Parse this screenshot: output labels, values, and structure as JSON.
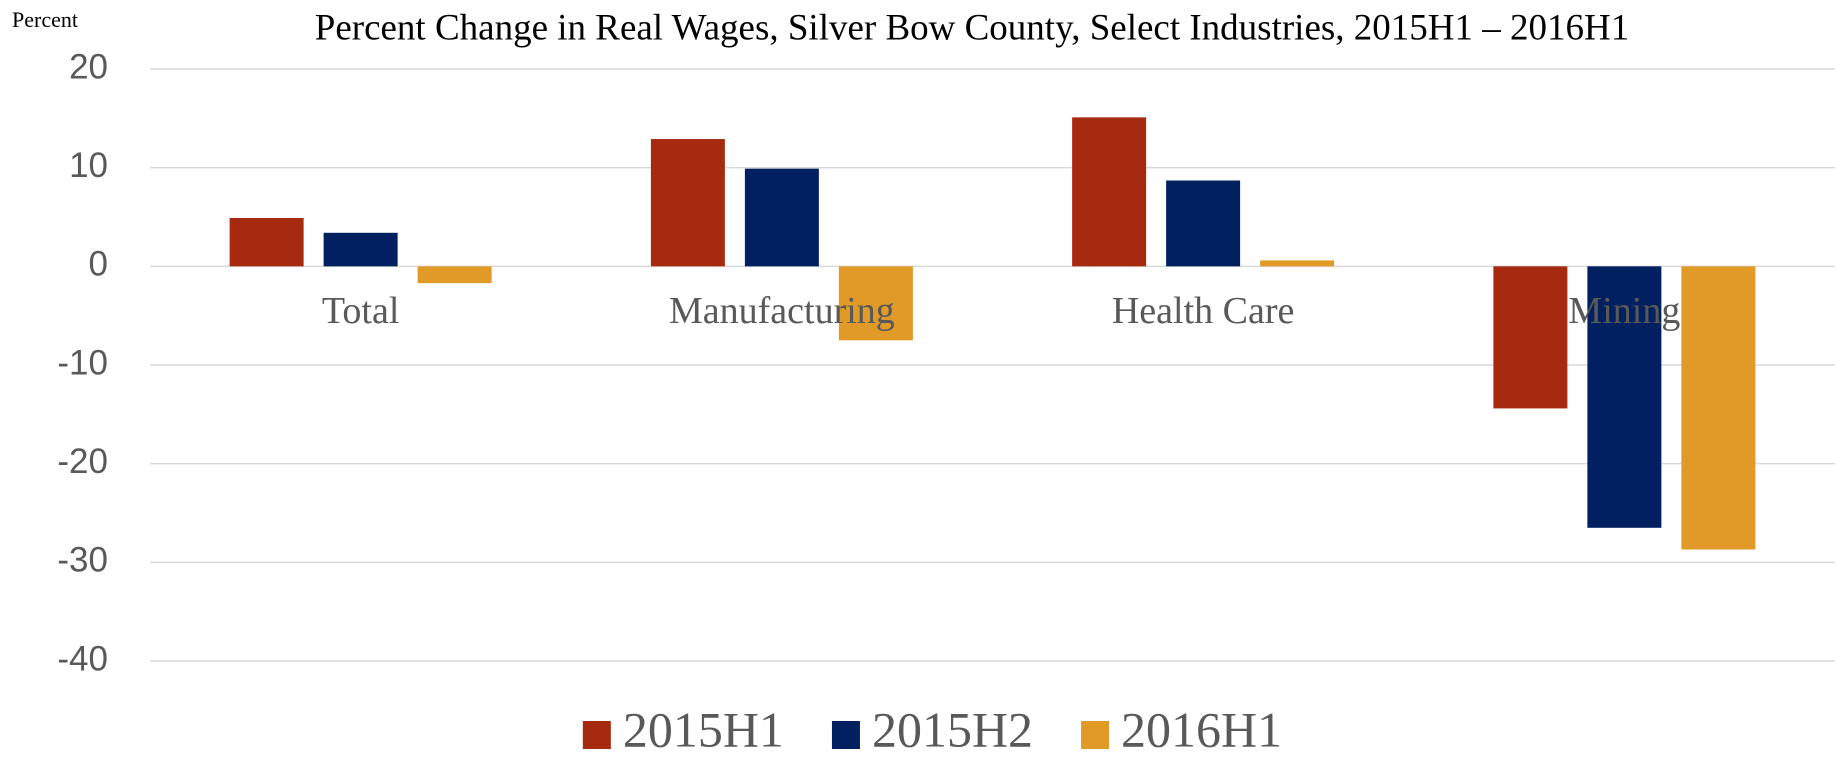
{
  "chart_data": {
    "type": "bar",
    "title": "Percent Change in Real Wages, Silver Bow County, Select Industries, 2015H1 – 2016H1",
    "y_label": "Percent",
    "categories": [
      "Total",
      "Manufacturing",
      "Health Care",
      "Mining"
    ],
    "series": [
      {
        "name": "2015H1",
        "color": "#a52a10",
        "values": [
          4.9,
          12.9,
          15.1,
          -14.4
        ]
      },
      {
        "name": "2015H2",
        "color": "#002060",
        "values": [
          3.4,
          9.9,
          8.7,
          -26.5
        ]
      },
      {
        "name": "2016H1",
        "color": "#e19a28",
        "values": [
          -1.7,
          -7.5,
          0.6,
          -28.7
        ]
      }
    ],
    "ylim": [
      -40,
      20
    ],
    "yticks": [
      -40,
      -30,
      -20,
      -10,
      0,
      10,
      20
    ],
    "grid": true,
    "legend": "bottom"
  }
}
